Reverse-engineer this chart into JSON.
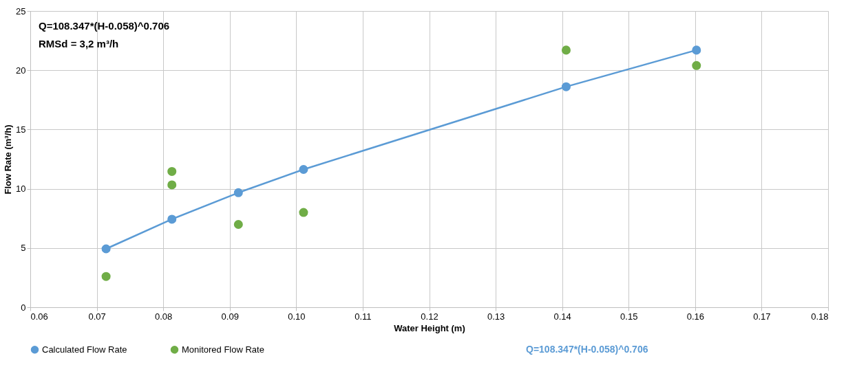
{
  "chart_data": {
    "type": "scatter",
    "xlabel": "Water Height (m)",
    "ylabel": "Flow Rate (m³/h)",
    "xlim": [
      0.06,
      0.18
    ],
    "xticks": [
      {
        "value": 0.06,
        "label": "0.06"
      },
      {
        "value": 0.07,
        "label": "0.07"
      },
      {
        "value": 0.08,
        "label": "0.08"
      },
      {
        "value": 0.09,
        "label": "0.09"
      },
      {
        "value": 0.1,
        "label": "0.10"
      },
      {
        "value": 0.11,
        "label": "0.11"
      },
      {
        "value": 0.12,
        "label": "0.12"
      },
      {
        "value": 0.13,
        "label": "0.13"
      },
      {
        "value": 0.14,
        "label": "0.14"
      },
      {
        "value": 0.15,
        "label": "0.15"
      },
      {
        "value": 0.16,
        "label": "0.16"
      },
      {
        "value": 0.17,
        "label": "0.17"
      },
      {
        "value": 0.18,
        "label": "0.18"
      }
    ],
    "ylim": [
      0,
      25
    ],
    "yticks": [
      0,
      5,
      10,
      15,
      20,
      25
    ],
    "grid": true,
    "legend": "bottom",
    "series": [
      {
        "name": "Calculated Flow Rate",
        "type": "line",
        "marker": "circle",
        "color": "#5b9bd5",
        "x": [
          0.0714,
          0.0813,
          0.0913,
          0.1011,
          0.1406,
          0.1602
        ],
        "values": [
          4.93,
          7.43,
          9.67,
          11.63,
          18.61,
          21.7
        ]
      },
      {
        "name": "Monitored Flow Rate",
        "marker": "circle",
        "color": "#70ad47",
        "x": [
          0.0714,
          0.0813,
          0.0813,
          0.0913,
          0.1011,
          0.1406,
          0.1602
        ],
        "values": [
          2.6,
          11.46,
          10.33,
          6.99,
          8.0,
          21.7,
          20.4
        ]
      }
    ],
    "annotations": [
      "Q=108.347*(H-0.058)^0.706",
      "RMSd = 3,2 m³/h",
      "Q=108.347*(H-0.058)^0.706"
    ]
  }
}
